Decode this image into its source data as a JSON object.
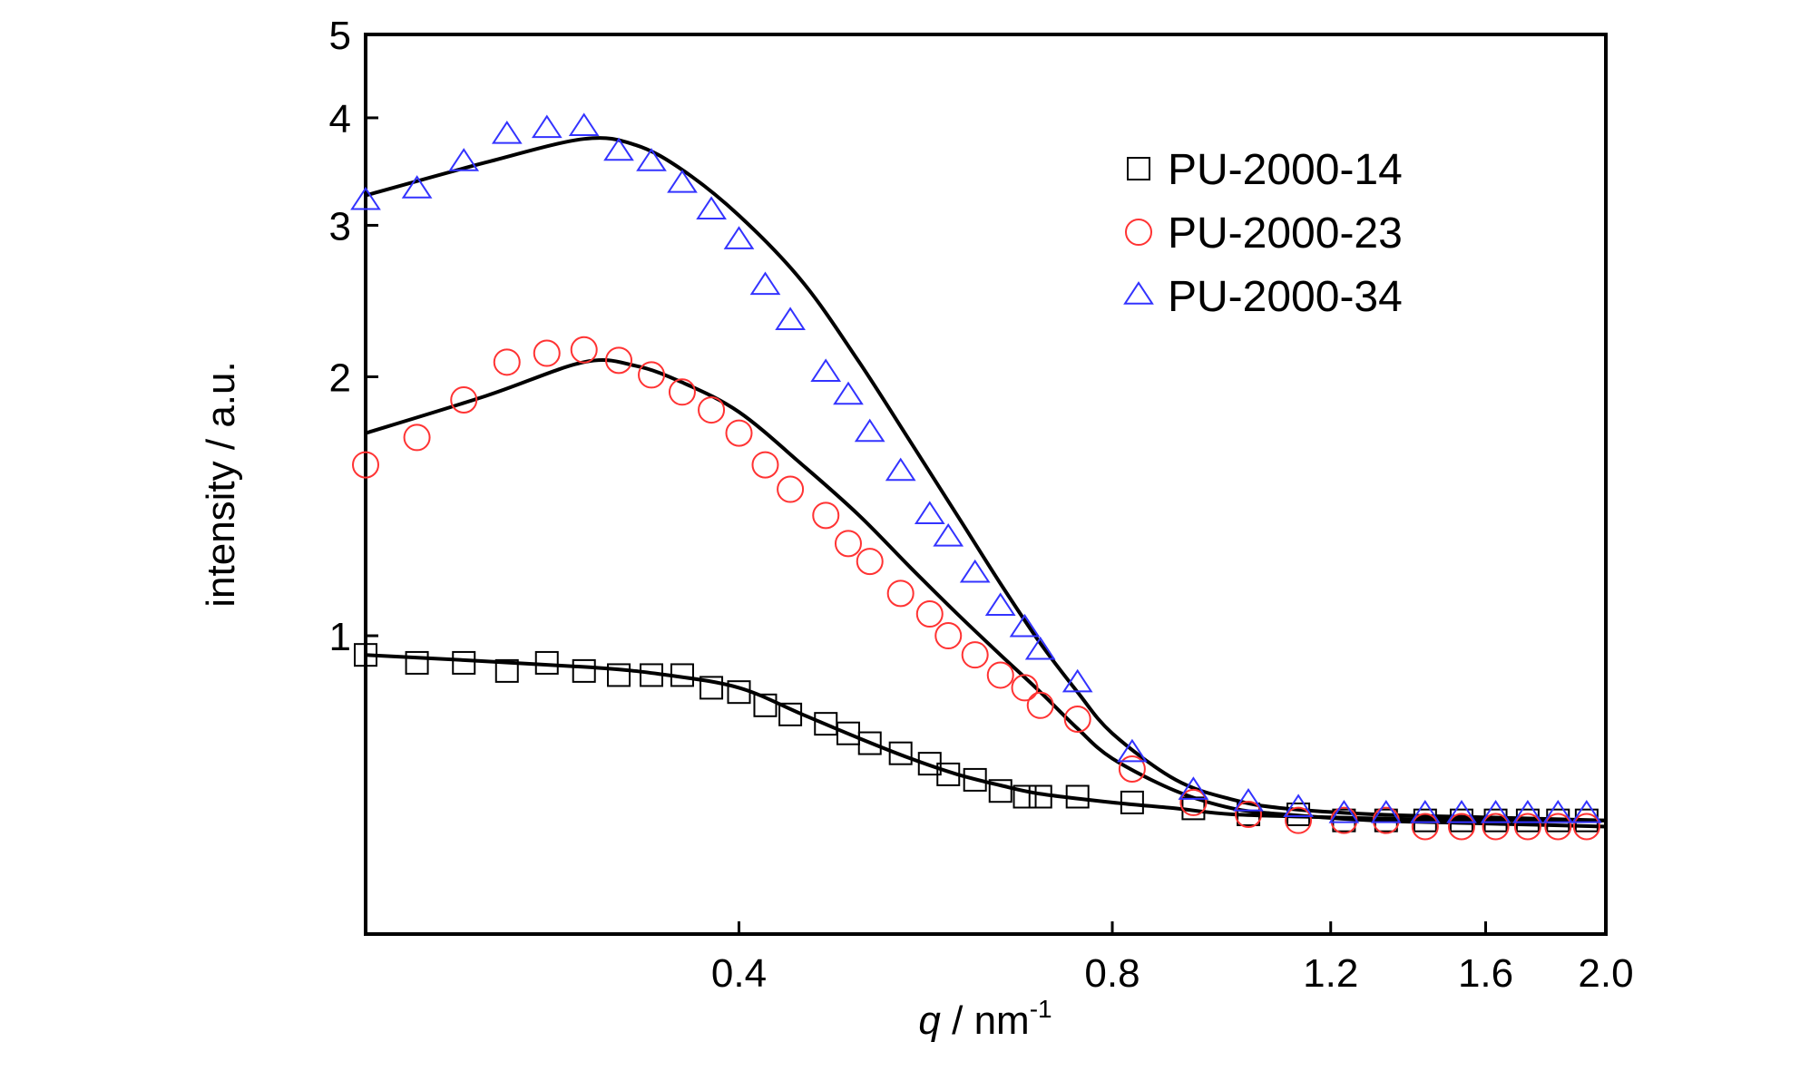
{
  "chart_data": {
    "type": "scatter",
    "title": "",
    "xlabel": {
      "symbol": "q",
      "unit_prefix": " / nm",
      "unit_exponent": "-1"
    },
    "ylabel": "intensity / a.u.",
    "x_scale": "log",
    "y_scale": "log",
    "xlim": [
      0.2,
      2.0
    ],
    "ylim": [
      0.45,
      5
    ],
    "x_ticks": [
      {
        "value": 0.4,
        "label": "0.4"
      },
      {
        "value": 0.8,
        "label": "0.8"
      },
      {
        "value": 1.2,
        "label": "1.2"
      },
      {
        "value": 1.6,
        "label": "1.6"
      },
      {
        "value": 2.0,
        "label": "2.0"
      }
    ],
    "y_ticks": [
      {
        "value": 1,
        "label": "1"
      },
      {
        "value": 2,
        "label": "2"
      },
      {
        "value": 3,
        "label": "3"
      },
      {
        "value": 4,
        "label": "4"
      },
      {
        "value": 5,
        "label": "5"
      }
    ],
    "grid": false,
    "legend_position": "top-right",
    "series": [
      {
        "name": "PU-2000-14",
        "marker": "square",
        "color": "#000000",
        "points": [
          [
            0.2,
            0.95
          ],
          [
            0.22,
            0.93
          ],
          [
            0.24,
            0.93
          ],
          [
            0.26,
            0.91
          ],
          [
            0.28,
            0.93
          ],
          [
            0.3,
            0.91
          ],
          [
            0.32,
            0.9
          ],
          [
            0.34,
            0.9
          ],
          [
            0.36,
            0.9
          ],
          [
            0.38,
            0.87
          ],
          [
            0.4,
            0.86
          ],
          [
            0.42,
            0.83
          ],
          [
            0.44,
            0.81
          ],
          [
            0.47,
            0.79
          ],
          [
            0.49,
            0.77
          ],
          [
            0.51,
            0.75
          ],
          [
            0.54,
            0.73
          ],
          [
            0.57,
            0.71
          ],
          [
            0.59,
            0.69
          ],
          [
            0.62,
            0.68
          ],
          [
            0.65,
            0.66
          ],
          [
            0.68,
            0.65
          ],
          [
            0.7,
            0.65
          ],
          [
            0.75,
            0.65
          ],
          [
            0.83,
            0.64
          ],
          [
            0.93,
            0.63
          ],
          [
            1.03,
            0.62
          ],
          [
            1.13,
            0.62
          ],
          [
            1.23,
            0.61
          ],
          [
            1.33,
            0.61
          ],
          [
            1.43,
            0.61
          ],
          [
            1.53,
            0.61
          ],
          [
            1.63,
            0.61
          ],
          [
            1.73,
            0.61
          ],
          [
            1.83,
            0.61
          ],
          [
            1.93,
            0.61
          ]
        ],
        "fit": [
          [
            0.2,
            0.95
          ],
          [
            0.3,
            0.92
          ],
          [
            0.35,
            0.9
          ],
          [
            0.4,
            0.87
          ],
          [
            0.45,
            0.81
          ],
          [
            0.5,
            0.76
          ],
          [
            0.55,
            0.72
          ],
          [
            0.6,
            0.69
          ],
          [
            0.65,
            0.67
          ],
          [
            0.7,
            0.655
          ],
          [
            0.8,
            0.64
          ],
          [
            0.9,
            0.63
          ],
          [
            1.0,
            0.62
          ],
          [
            1.2,
            0.615
          ],
          [
            1.4,
            0.612
          ],
          [
            1.7,
            0.61
          ],
          [
            2.0,
            0.61
          ]
        ]
      },
      {
        "name": "PU-2000-23",
        "marker": "circle",
        "color": "#ff3333",
        "points": [
          [
            0.2,
            1.58
          ],
          [
            0.22,
            1.7
          ],
          [
            0.24,
            1.88
          ],
          [
            0.26,
            2.08
          ],
          [
            0.28,
            2.13
          ],
          [
            0.3,
            2.15
          ],
          [
            0.32,
            2.09
          ],
          [
            0.34,
            2.01
          ],
          [
            0.36,
            1.92
          ],
          [
            0.38,
            1.83
          ],
          [
            0.4,
            1.72
          ],
          [
            0.42,
            1.58
          ],
          [
            0.44,
            1.48
          ],
          [
            0.47,
            1.38
          ],
          [
            0.49,
            1.28
          ],
          [
            0.51,
            1.22
          ],
          [
            0.54,
            1.12
          ],
          [
            0.57,
            1.06
          ],
          [
            0.59,
            1.0
          ],
          [
            0.62,
            0.95
          ],
          [
            0.65,
            0.9
          ],
          [
            0.68,
            0.87
          ],
          [
            0.7,
            0.83
          ],
          [
            0.75,
            0.8
          ],
          [
            0.83,
            0.7
          ],
          [
            0.93,
            0.64
          ],
          [
            1.03,
            0.62
          ],
          [
            1.13,
            0.61
          ],
          [
            1.23,
            0.61
          ],
          [
            1.33,
            0.61
          ],
          [
            1.43,
            0.6
          ],
          [
            1.53,
            0.6
          ],
          [
            1.63,
            0.6
          ],
          [
            1.73,
            0.6
          ],
          [
            1.83,
            0.6
          ],
          [
            1.93,
            0.6
          ]
        ],
        "fit": [
          [
            0.2,
            1.72
          ],
          [
            0.25,
            1.9
          ],
          [
            0.3,
            2.08
          ],
          [
            0.33,
            2.06
          ],
          [
            0.36,
            1.97
          ],
          [
            0.4,
            1.82
          ],
          [
            0.45,
            1.58
          ],
          [
            0.5,
            1.38
          ],
          [
            0.55,
            1.2
          ],
          [
            0.6,
            1.06
          ],
          [
            0.65,
            0.95
          ],
          [
            0.7,
            0.86
          ],
          [
            0.75,
            0.78
          ],
          [
            0.8,
            0.72
          ],
          [
            0.9,
            0.66
          ],
          [
            1.0,
            0.63
          ],
          [
            1.1,
            0.62
          ],
          [
            1.3,
            0.61
          ],
          [
            1.6,
            0.605
          ],
          [
            2.0,
            0.6
          ]
        ]
      },
      {
        "name": "PU-2000-34",
        "marker": "triangle",
        "color": "#3333ff",
        "points": [
          [
            0.2,
            3.2
          ],
          [
            0.22,
            3.3
          ],
          [
            0.24,
            3.55
          ],
          [
            0.26,
            3.82
          ],
          [
            0.28,
            3.88
          ],
          [
            0.3,
            3.9
          ],
          [
            0.32,
            3.65
          ],
          [
            0.34,
            3.55
          ],
          [
            0.36,
            3.35
          ],
          [
            0.38,
            3.12
          ],
          [
            0.4,
            2.88
          ],
          [
            0.42,
            2.55
          ],
          [
            0.44,
            2.32
          ],
          [
            0.47,
            2.02
          ],
          [
            0.49,
            1.9
          ],
          [
            0.51,
            1.72
          ],
          [
            0.54,
            1.55
          ],
          [
            0.57,
            1.38
          ],
          [
            0.59,
            1.3
          ],
          [
            0.62,
            1.18
          ],
          [
            0.65,
            1.08
          ],
          [
            0.68,
            1.02
          ],
          [
            0.7,
            0.96
          ],
          [
            0.75,
            0.88
          ],
          [
            0.83,
            0.73
          ],
          [
            0.93,
            0.66
          ],
          [
            1.03,
            0.64
          ],
          [
            1.13,
            0.63
          ],
          [
            1.23,
            0.62
          ],
          [
            1.33,
            0.62
          ],
          [
            1.43,
            0.62
          ],
          [
            1.53,
            0.62
          ],
          [
            1.63,
            0.62
          ],
          [
            1.73,
            0.62
          ],
          [
            1.83,
            0.62
          ],
          [
            1.93,
            0.62
          ]
        ],
        "fit": [
          [
            0.2,
            3.25
          ],
          [
            0.25,
            3.55
          ],
          [
            0.3,
            3.78
          ],
          [
            0.33,
            3.72
          ],
          [
            0.36,
            3.48
          ],
          [
            0.4,
            3.08
          ],
          [
            0.45,
            2.58
          ],
          [
            0.5,
            2.08
          ],
          [
            0.55,
            1.68
          ],
          [
            0.6,
            1.38
          ],
          [
            0.65,
            1.15
          ],
          [
            0.7,
            0.98
          ],
          [
            0.75,
            0.86
          ],
          [
            0.8,
            0.77
          ],
          [
            0.9,
            0.68
          ],
          [
            1.0,
            0.645
          ],
          [
            1.1,
            0.63
          ],
          [
            1.3,
            0.62
          ],
          [
            1.6,
            0.615
          ],
          [
            2.0,
            0.61
          ]
        ]
      }
    ]
  }
}
